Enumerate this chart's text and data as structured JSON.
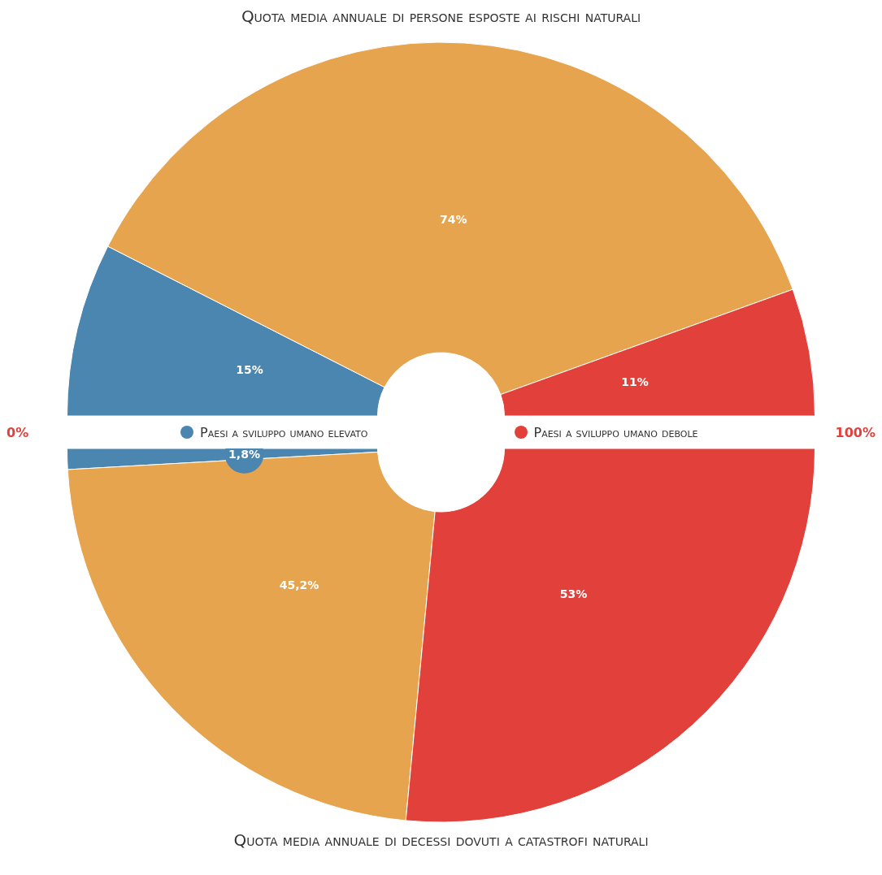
{
  "chart_data": [
    {
      "type": "donut",
      "title": "Quota media annuale di persone esposte ai rischi naturali",
      "categories": [
        "Paesi a sviluppo umano elevato",
        null,
        "Paesi a sviluppo umano debole"
      ],
      "values": [
        15,
        74,
        11
      ],
      "colors": [
        "#4a86b0",
        "#e6a44e",
        "#e2413b"
      ],
      "value_labels": [
        "15%",
        "74%",
        "11%"
      ],
      "legend": "center",
      "annotations": [
        "0%",
        "100%"
      ]
    },
    {
      "type": "donut",
      "title": "Quota media annuale di decessi dovuti a catastrofi naturali",
      "categories": [
        null,
        null,
        null
      ],
      "values": [
        1.8,
        45.2,
        53
      ],
      "colors": [
        "#4a86b0",
        "#e6a44e",
        "#e2413b"
      ],
      "value_labels": [
        "1,8%",
        "45,2%",
        "53%"
      ]
    }
  ]
}
